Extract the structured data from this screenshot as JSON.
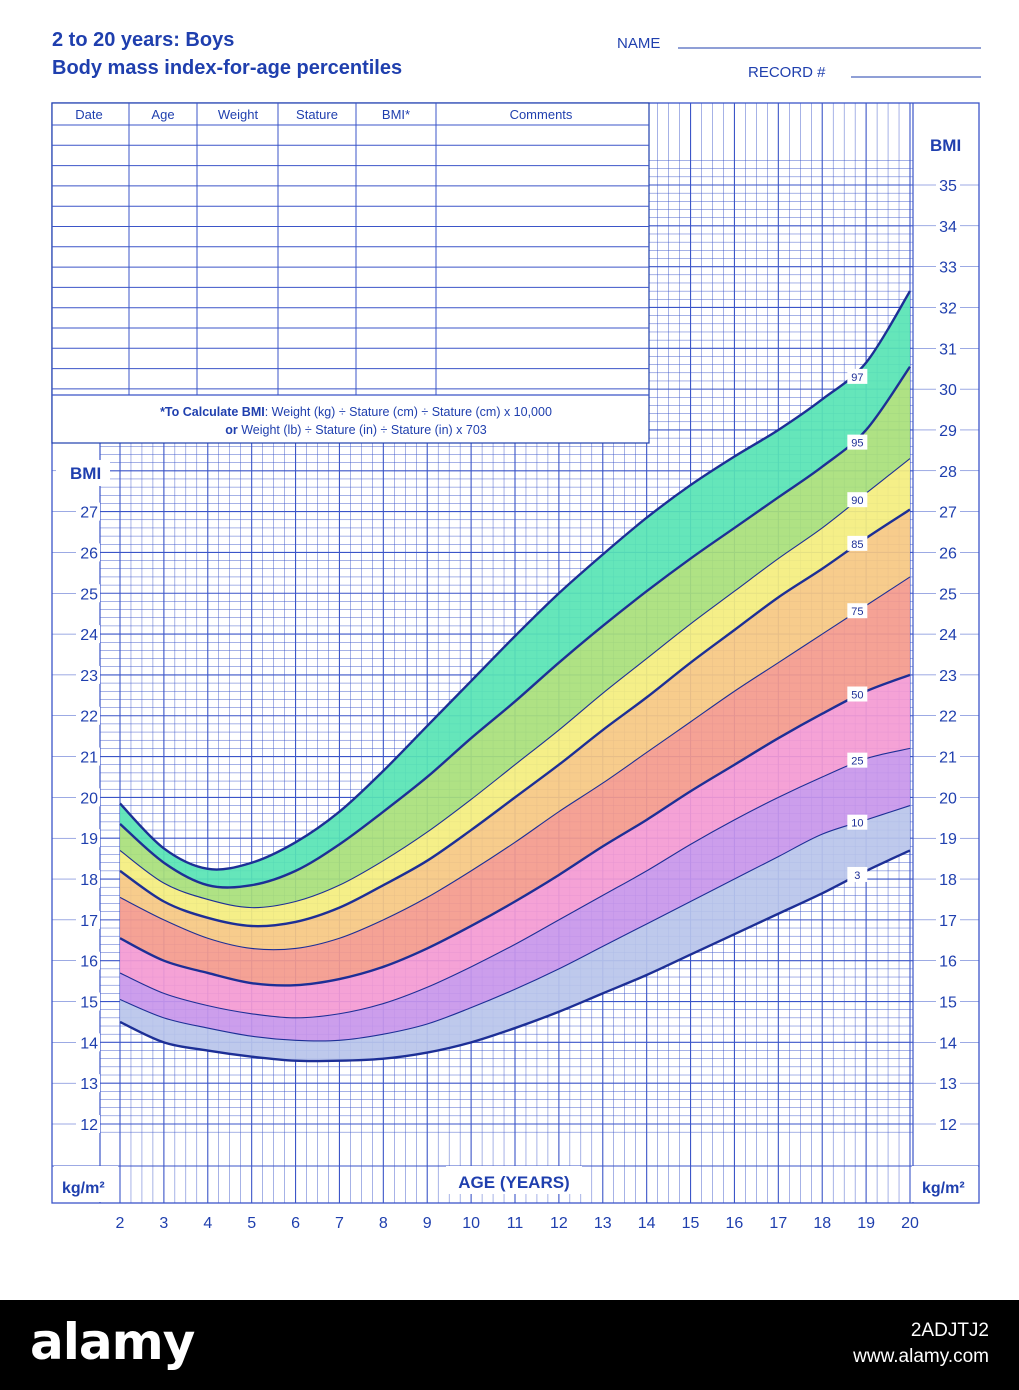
{
  "header": {
    "title_line1": "2 to 20 years: Boys",
    "title_line2": "Body mass index-for-age percentiles",
    "name_label": "NAME",
    "record_label": "RECORD #"
  },
  "record_table": {
    "columns": [
      "Date",
      "Age",
      "Weight",
      "Stature",
      "BMI*",
      "Comments"
    ],
    "formula_line1_bold": "*To Calculate BMI",
    "formula_line1_rest": ": Weight (kg) ÷ Stature (cm) ÷ Stature (cm) x 10,000",
    "formula_line2_bold": "or",
    "formula_line2_rest": " Weight (lb) ÷ Stature (in) ÷ Stature (in) x 703"
  },
  "chart_labels": {
    "bmi_left": "BMI",
    "bmi_right": "BMI",
    "unit_left": "kg/m²",
    "unit_right": "kg/m²",
    "xlabel": "AGE (YEARS)"
  },
  "chart_data": {
    "type": "line",
    "title": "Body mass index-for-age percentiles",
    "xlabel": "AGE (YEARS)",
    "ylabel": "BMI",
    "xlim": [
      2,
      20
    ],
    "ylim": [
      11,
      36
    ],
    "x_ticks": [
      2,
      3,
      4,
      5,
      6,
      7,
      8,
      9,
      10,
      11,
      12,
      13,
      14,
      15,
      16,
      17,
      18,
      19,
      20
    ],
    "y_ticks_left": [
      12,
      13,
      14,
      15,
      16,
      17,
      18,
      19,
      20,
      21,
      22,
      23,
      24,
      25,
      26,
      27
    ],
    "y_ticks_right": [
      12,
      13,
      14,
      15,
      16,
      17,
      18,
      19,
      20,
      21,
      22,
      23,
      24,
      25,
      26,
      27,
      28,
      29,
      30,
      31,
      32,
      33,
      34,
      35
    ],
    "grid": true,
    "x": [
      2,
      3,
      4,
      5,
      6,
      7,
      8,
      9,
      10,
      11,
      12,
      13,
      14,
      15,
      16,
      17,
      18,
      19,
      20
    ],
    "series": [
      {
        "name": "3",
        "values": [
          14.5,
          14.0,
          13.8,
          13.65,
          13.55,
          13.55,
          13.6,
          13.75,
          14.0,
          14.35,
          14.75,
          15.2,
          15.65,
          16.15,
          16.65,
          17.15,
          17.65,
          18.2,
          18.7
        ]
      },
      {
        "name": "10",
        "values": [
          15.05,
          14.6,
          14.35,
          14.15,
          14.05,
          14.05,
          14.2,
          14.45,
          14.85,
          15.3,
          15.8,
          16.35,
          16.9,
          17.45,
          18.0,
          18.55,
          19.1,
          19.45,
          19.8
        ]
      },
      {
        "name": "25",
        "values": [
          15.7,
          15.2,
          14.9,
          14.7,
          14.6,
          14.7,
          14.95,
          15.35,
          15.85,
          16.4,
          17.0,
          17.6,
          18.2,
          18.85,
          19.45,
          20.0,
          20.5,
          20.95,
          21.2
        ]
      },
      {
        "name": "50",
        "values": [
          16.55,
          16.0,
          15.7,
          15.45,
          15.4,
          15.55,
          15.85,
          16.3,
          16.85,
          17.45,
          18.1,
          18.8,
          19.45,
          20.15,
          20.8,
          21.45,
          22.05,
          22.6,
          23.0
        ]
      },
      {
        "name": "75",
        "values": [
          17.55,
          17.0,
          16.55,
          16.3,
          16.3,
          16.55,
          17.0,
          17.55,
          18.2,
          18.9,
          19.65,
          20.35,
          21.1,
          21.85,
          22.6,
          23.3,
          24.0,
          24.7,
          25.4
        ]
      },
      {
        "name": "85",
        "values": [
          18.2,
          17.45,
          17.05,
          16.85,
          16.95,
          17.3,
          17.85,
          18.45,
          19.2,
          20.0,
          20.8,
          21.65,
          22.45,
          23.3,
          24.1,
          24.9,
          25.6,
          26.35,
          27.05
        ]
      },
      {
        "name": "90",
        "values": [
          18.7,
          17.9,
          17.5,
          17.3,
          17.45,
          17.85,
          18.45,
          19.15,
          19.95,
          20.8,
          21.65,
          22.55,
          23.4,
          24.25,
          25.05,
          25.85,
          26.6,
          27.45,
          28.3
        ]
      },
      {
        "name": "95",
        "values": [
          19.35,
          18.4,
          17.85,
          17.85,
          18.2,
          18.85,
          19.65,
          20.5,
          21.45,
          22.35,
          23.3,
          24.2,
          25.05,
          25.85,
          26.6,
          27.35,
          28.1,
          29.0,
          30.55
        ]
      },
      {
        "name": "97",
        "values": [
          19.85,
          18.75,
          18.25,
          18.4,
          18.9,
          19.65,
          20.65,
          21.75,
          22.85,
          23.95,
          25.0,
          25.95,
          26.85,
          27.65,
          28.35,
          29.0,
          29.75,
          30.65,
          32.4
        ]
      }
    ],
    "band_colors": [
      "#b8c4ea",
      "#c896ea",
      "#f49ad2",
      "#f49a8c",
      "#f6c882",
      "#f4ee7e",
      "#a8e07a",
      "#58e4b4"
    ],
    "line_color": "#1d2f96",
    "grid_color": "#3b55c8"
  },
  "footer": {
    "brand": "alamy",
    "image_id": "2ADJTJ2",
    "site": "www.alamy.com"
  }
}
